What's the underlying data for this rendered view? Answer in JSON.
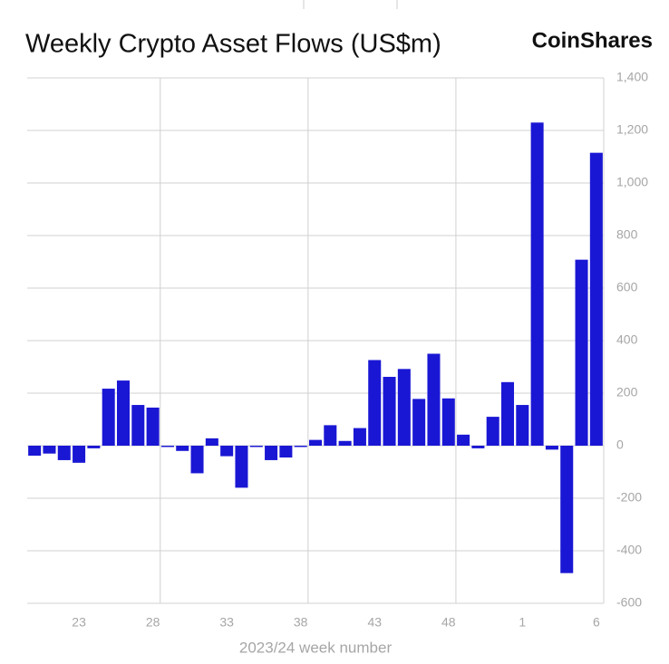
{
  "chart_data": {
    "type": "bar",
    "title": "Weekly Crypto Asset Flows (US$m)",
    "brand": "CoinShares",
    "x_label": "2023/24 week number",
    "categories": [
      null,
      null,
      null,
      "23",
      null,
      null,
      null,
      null,
      "28",
      null,
      null,
      null,
      null,
      "33",
      null,
      null,
      null,
      null,
      "38",
      null,
      null,
      null,
      null,
      "43",
      null,
      null,
      null,
      null,
      "48",
      null,
      null,
      null,
      null,
      "1",
      null,
      null,
      null,
      null,
      "6"
    ],
    "values": [
      -38,
      -30,
      -55,
      -65,
      -10,
      217,
      248,
      155,
      145,
      -5,
      -20,
      -105,
      28,
      -40,
      -160,
      -5,
      -55,
      -45,
      -5,
      22,
      78,
      18,
      67,
      326,
      262,
      292,
      178,
      350,
      180,
      42,
      -10,
      110,
      242,
      155,
      1230,
      -15,
      -485,
      708,
      1115
    ],
    "color": "#1a17d4",
    "ylim": [
      -600,
      1400
    ],
    "yticks": [
      -600,
      -400,
      -200,
      0,
      200,
      400,
      600,
      800,
      {
        "value": 1000,
        "label": "1,000"
      },
      {
        "value": 1200,
        "label": "1,200"
      },
      {
        "value": 1400,
        "label": "1,400"
      }
    ],
    "grid": true
  }
}
